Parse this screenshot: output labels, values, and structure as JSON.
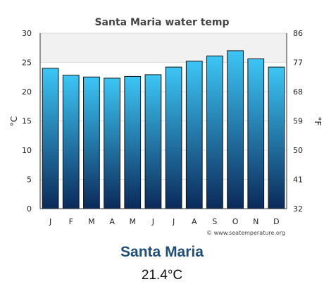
{
  "chart_data": {
    "type": "bar",
    "title": "Santa Maria water temp",
    "categories": [
      "J",
      "F",
      "M",
      "A",
      "M",
      "J",
      "J",
      "A",
      "S",
      "O",
      "N",
      "D"
    ],
    "series": [
      {
        "values": [
          24.0,
          22.8,
          22.5,
          22.3,
          22.6,
          22.9,
          24.2,
          25.2,
          26.1,
          27.0,
          25.6,
          24.2
        ]
      }
    ],
    "ylabel": "°C",
    "ylim": [
      0,
      30
    ],
    "yticks": [
      "0",
      "5",
      "10",
      "15",
      "20",
      "25",
      "30"
    ],
    "ylabel_right": "°F",
    "yticks_right": [
      "32",
      "41",
      "50",
      "59",
      "68",
      "77",
      "86"
    ],
    "grid": true,
    "bar_gradient": [
      "#3cc6f5",
      "#0a2a5a"
    ],
    "credit": "© www.seatemperature.org"
  },
  "location": {
    "name": "Santa Maria",
    "current_temp": "21.4°C"
  }
}
